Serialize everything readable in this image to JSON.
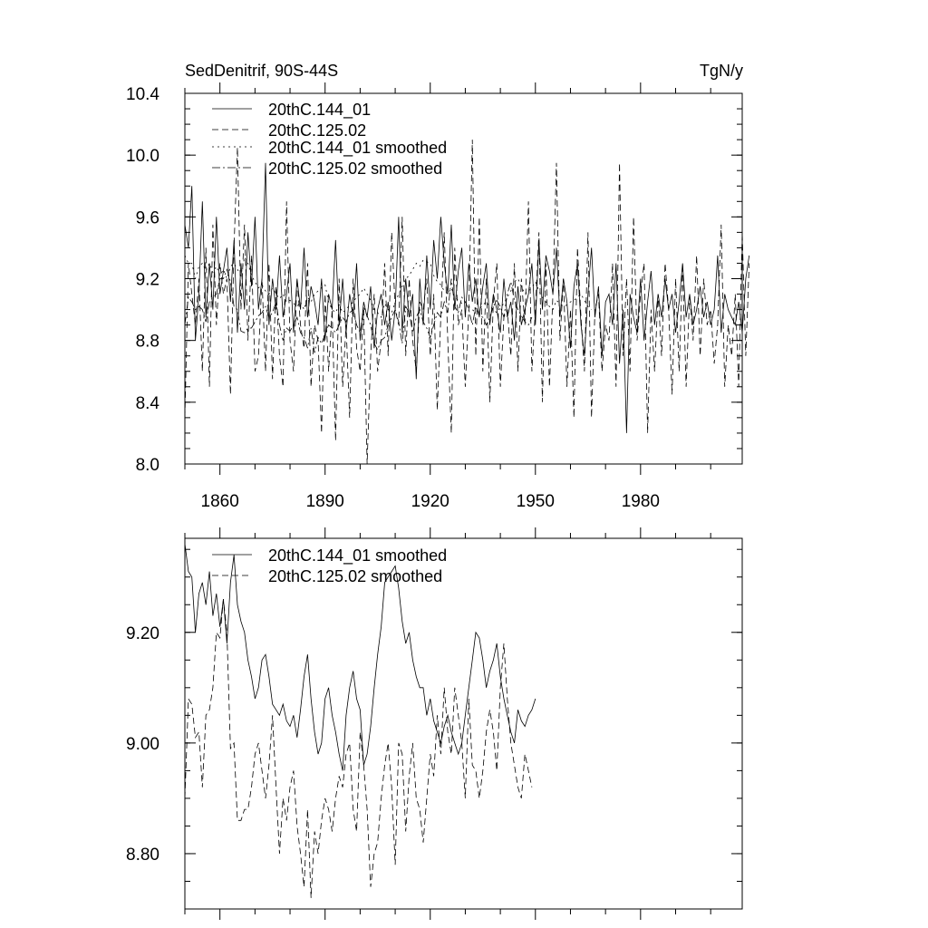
{
  "chart_data": [
    {
      "type": "line",
      "title_left": "SedDenitrif, 90S-44S",
      "title_right": "TgN/y",
      "xlim": [
        1850,
        2009
      ],
      "ylim": [
        8.0,
        10.4
      ],
      "yticks": [
        8.0,
        8.4,
        8.8,
        9.2,
        9.6,
        10.0,
        10.4
      ],
      "ytick_labels": [
        "8.0",
        "8.4",
        "8.8",
        "9.2",
        "9.6",
        "10.0",
        "10.4"
      ],
      "xticks": [
        1860,
        1890,
        1920,
        1950,
        1980
      ],
      "xtick_labels": [
        "1860",
        "1890",
        "1920",
        "1950",
        "1980"
      ],
      "legend": [
        "20thC.144_01",
        "20thC.125.02",
        "20thC.144_01 smoothed",
        "20thC.125.02 smoothed"
      ],
      "series": [
        {
          "name": "20thC.144_01",
          "style": "solid",
          "x_start": 1850,
          "values": [
            9.55,
            9.4,
            9.8,
            8.8,
            9.1,
            9.7,
            8.95,
            9.3,
            9.0,
            9.6,
            9.1,
            9.25,
            9.4,
            9.05,
            9.45,
            8.85,
            9.3,
            9.0,
            9.5,
            9.15,
            9.6,
            9.0,
            9.2,
            9.95,
            8.9,
            9.2,
            9.0,
            9.35,
            8.95,
            9.1,
            9.3,
            8.85,
            9.2,
            9.0,
            9.4,
            8.95,
            9.15,
            9.05,
            8.9,
            9.2,
            8.8,
            9.1,
            9.0,
            9.45,
            8.9,
            9.2,
            8.85,
            9.1,
            8.95,
            9.3,
            8.8,
            9.05,
            8.95,
            9.15,
            8.75,
            9.0,
            9.1,
            8.9,
            9.05,
            8.8,
            9.0,
            9.6,
            8.85,
            9.2,
            8.95,
            9.1,
            8.55,
            9.2,
            8.9,
            9.35,
            9.0,
            9.45,
            9.2,
            9.6,
            9.3,
            9.1,
            9.55,
            9.0,
            9.25,
            9.4,
            8.95,
            9.3,
            9.05,
            9.2,
            8.95,
            9.15,
            9.3,
            8.9,
            9.1,
            9.0,
            8.85,
            9.2,
            8.95,
            9.05,
            8.8,
            9.15,
            8.9,
            9.0,
            9.1,
            9.3,
            8.9,
            9.45,
            9.0,
            9.35,
            9.25,
            9.1,
            9.4,
            8.95,
            9.2,
            9.05,
            8.75,
            9.15,
            9.3,
            8.9,
            8.7,
            9.1,
            9.4,
            8.95,
            9.15,
            8.7,
            9.05,
            9.1,
            8.9,
            9.3,
            8.65,
            9.0,
            8.2,
            9.1,
            8.95,
            8.85,
            9.2,
            8.8,
            9.05,
            9.25,
            8.9,
            9.1,
            8.95,
            9.2,
            9.0,
            9.1,
            8.85,
            9.05,
            9.3,
            8.95,
            9.1,
            8.9,
            9.0,
            9.15,
            8.95,
            9.05,
            8.9,
            9.0,
            9.35,
            8.85,
            9.1,
            9.0,
            8.95,
            8.9,
            9.05,
            8.85,
            9.2,
            9.35
          ]
        },
        {
          "name": "20thC.125.02",
          "style": "dashed",
          "x_start": 1850,
          "values": [
            8.3,
            9.3,
            9.1,
            8.9,
            9.2,
            8.6,
            9.4,
            8.5,
            9.55,
            8.9,
            9.3,
            9.1,
            9.2,
            8.45,
            9.4,
            10.05,
            9.0,
            9.55,
            8.8,
            9.35,
            8.6,
            8.7,
            9.2,
            8.6,
            9.3,
            8.55,
            9.15,
            8.7,
            8.5,
            9.7,
            8.8,
            8.6,
            9.2,
            8.9,
            8.75,
            9.3,
            8.5,
            8.9,
            8.8,
            8.2,
            9.1,
            8.6,
            9.0,
            8.15,
            9.2,
            8.5,
            8.9,
            8.3,
            9.2,
            8.75,
            8.6,
            9.0,
            8.0,
            8.7,
            9.1,
            8.6,
            8.8,
            9.3,
            8.7,
            9.5,
            9.0,
            8.9,
            9.6,
            8.7,
            9.2,
            8.8,
            8.6,
            9.05,
            9.0,
            9.2,
            8.7,
            9.1,
            8.35,
            8.95,
            9.5,
            8.8,
            8.2,
            9.4,
            8.9,
            9.0,
            8.5,
            9.0,
            10.1,
            8.7,
            9.6,
            8.6,
            9.2,
            8.4,
            9.05,
            9.3,
            8.5,
            8.95,
            9.0,
            8.7,
            9.3,
            8.6,
            9.2,
            8.9,
            9.7,
            8.6,
            9.0,
            9.5,
            8.4,
            9.3,
            8.5,
            9.1,
            9.95,
            8.8,
            9.2,
            8.5,
            9.0,
            8.3,
            9.4,
            8.95,
            8.6,
            9.5,
            8.3,
            9.0,
            9.1,
            8.6,
            8.9,
            8.8,
            9.3,
            8.5,
            9.95,
            8.7,
            9.2,
            8.6,
            9.6,
            8.8,
            9.1,
            9.3,
            8.2,
            9.0,
            8.6,
            9.1,
            8.7,
            9.3,
            9.0,
            8.45,
            9.2,
            8.6,
            9.3,
            8.5,
            9.1,
            8.8,
            9.35,
            8.7,
            9.2,
            8.9,
            9.0,
            8.65,
            8.9,
            9.55,
            8.5,
            8.9,
            8.7,
            9.1,
            8.5,
            9.5,
            8.7,
            9.3
          ]
        },
        {
          "name": "20thC.144_01 smoothed",
          "style": "dotted",
          "x_start": 1850,
          "values": [
            9.35,
            9.3,
            9.3,
            9.2,
            9.28,
            9.3,
            9.25,
            9.3,
            9.24,
            9.28,
            9.22,
            9.26,
            9.2,
            9.28,
            9.3,
            9.26,
            9.22,
            9.34,
            9.3,
            9.22,
            9.18,
            9.14,
            9.16,
            9.12,
            9.1,
            9.14,
            9.1,
            9.07,
            9.1,
            9.05,
            9.06,
            9.04,
            9.02,
            9.05,
            9.0,
            9.08,
            9.05,
            9.1,
            9.12,
            9.14,
            9.16,
            9.05,
            9.0,
            8.98,
            9.03,
            8.98,
            9.0,
            9.03,
            9.05,
            9.08,
            9.1,
            9.14,
            9.1,
            9.06,
            9.0,
            8.98,
            8.95,
            9.04,
            9.0,
            8.98,
            9.05,
            9.1,
            9.15,
            9.2,
            9.22,
            9.26,
            9.3,
            9.28,
            9.32,
            9.31,
            9.3,
            9.22,
            9.18,
            9.16,
            9.12,
            9.1,
            9.14,
            9.08,
            9.06,
            9.04,
            9.05,
            9.02,
            9.0,
            8.98,
            9.0,
            9.03,
            9.05,
            9.02,
            9.0,
            8.98,
            9.01,
            9.04,
            9.08,
            9.12,
            9.18,
            9.2,
            9.15,
            9.1,
            9.12,
            9.14,
            9.18,
            9.12,
            9.08,
            9.05,
            9.02,
            9.0,
            9.06,
            9.04,
            9.02,
            9.03,
            9.05,
            9.06,
            9.08,
            9.1,
            9.06,
            9.02,
            9.0
          ]
        },
        {
          "name": "20thC.125.02 smoothed",
          "style": "dashdot",
          "x_start": 1850,
          "values": [
            8.9,
            9.08,
            9.05,
            9.0,
            9.02,
            9.0,
            8.92,
            9.05,
            9.08,
            9.1,
            9.2,
            9.2,
            9.26,
            9.18,
            9.02,
            9.0,
            8.86,
            8.85,
            8.88,
            8.88,
            8.92,
            8.96,
            8.98,
            9.02,
            8.95,
            8.98,
            9.05,
            8.9,
            8.8,
            8.88,
            8.86,
            8.9,
            8.95,
            8.85,
            8.82,
            8.75,
            8.88,
            8.72,
            8.82,
            8.78,
            8.84,
            8.9,
            8.88,
            8.85,
            8.9,
            8.95,
            8.92,
            8.98,
            9.0,
            8.9,
            8.85,
            9.02,
            8.96,
            8.9,
            8.78,
            8.74,
            8.8,
            8.82,
            8.9,
            8.95,
            9.0,
            8.92,
            8.78,
            9.02,
            8.98,
            8.85,
            8.95,
            9.0,
            8.92,
            8.88,
            8.82,
            8.9,
            8.98,
            8.95,
            9.05,
            8.98,
            9.2,
            9.02,
            8.98,
            9.08,
            9.05,
            9.0,
            8.9,
            9.02,
            8.96,
            8.95,
            8.9,
            8.95,
            9.02,
            9.06,
            9.02,
            8.95,
            9.1,
            9.18,
            9.06,
            9.0,
            8.96,
            8.92,
            8.9,
            8.95
          ]
        }
      ]
    },
    {
      "type": "line",
      "xlim": [
        1850,
        2009
      ],
      "ylim": [
        8.7,
        9.37
      ],
      "yticks": [
        8.8,
        9.0,
        9.2
      ],
      "ytick_labels": [
        "8.80",
        "9.00",
        "9.20"
      ],
      "legend": [
        "20thC.144_01 smoothed",
        "20thC.125.02 smoothed"
      ],
      "series": [
        {
          "name": "20thC.144_01 smoothed",
          "style": "solid",
          "x_start": 1850,
          "values": [
            9.36,
            9.31,
            9.3,
            9.2,
            9.27,
            9.29,
            9.25,
            9.31,
            9.23,
            9.27,
            9.21,
            9.26,
            9.18,
            9.29,
            9.34,
            9.25,
            9.22,
            9.2,
            9.15,
            9.12,
            9.08,
            9.1,
            9.15,
            9.16,
            9.12,
            9.07,
            9.06,
            9.05,
            9.07,
            9.04,
            9.03,
            9.05,
            9.01,
            9.06,
            9.12,
            9.16,
            9.08,
            9.02,
            8.98,
            9.0,
            9.08,
            9.1,
            9.05,
            9.02,
            8.98,
            8.95,
            9.05,
            9.1,
            9.13,
            9.08,
            9.06,
            8.96,
            8.98,
            9.03,
            9.1,
            9.16,
            9.21,
            9.29,
            9.3,
            9.31,
            9.32,
            9.28,
            9.22,
            9.18,
            9.2,
            9.15,
            9.12,
            9.1,
            9.1,
            9.05,
            9.08,
            9.04,
            9.02,
            9.0,
            9.03,
            9.05,
            9.02,
            9.0,
            8.98,
            9.0,
            9.05,
            9.1,
            9.15,
            9.2,
            9.19,
            9.15,
            9.1,
            9.13,
            9.15,
            9.18,
            9.12,
            9.08,
            9.05,
            9.02,
            9.0,
            9.06,
            9.04,
            9.03,
            9.05,
            9.06,
            9.08
          ]
        },
        {
          "name": "20thC.125.02 smoothed",
          "style": "dashed",
          "x_start": 1850,
          "values": [
            8.9,
            9.08,
            9.07,
            9.01,
            9.02,
            8.92,
            9.05,
            9.06,
            9.1,
            9.2,
            9.19,
            9.26,
            9.2,
            8.99,
            9.0,
            8.86,
            8.86,
            8.88,
            8.88,
            8.92,
            8.98,
            9.0,
            8.95,
            8.9,
            8.96,
            9.05,
            8.92,
            8.8,
            8.9,
            8.86,
            8.92,
            8.95,
            8.85,
            8.8,
            8.74,
            8.88,
            8.72,
            8.84,
            8.8,
            8.86,
            8.9,
            8.88,
            8.84,
            8.9,
            8.94,
            8.92,
            8.98,
            9.0,
            8.88,
            8.84,
            9.02,
            8.96,
            8.88,
            8.74,
            8.8,
            8.82,
            8.9,
            8.96,
            9.0,
            8.92,
            8.78,
            9.0,
            8.98,
            8.84,
            8.94,
            9.0,
            8.9,
            8.88,
            8.82,
            8.9,
            8.98,
            8.94,
            9.05,
            8.98,
            9.1,
            9.02,
            8.98,
            9.1,
            9.05,
            9.0,
            8.9,
            9.08,
            8.96,
            8.95,
            8.9,
            8.95,
            9.02,
            9.06,
            9.02,
            8.95,
            9.1,
            9.18,
            9.08,
            9.0,
            8.96,
            8.92,
            8.9,
            8.98,
            8.95,
            8.92
          ]
        }
      ]
    }
  ]
}
